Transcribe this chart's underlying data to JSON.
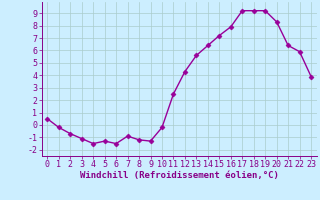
{
  "x": [
    0,
    1,
    2,
    3,
    4,
    5,
    6,
    7,
    8,
    9,
    10,
    11,
    12,
    13,
    14,
    15,
    16,
    17,
    18,
    19,
    20,
    21,
    22,
    23
  ],
  "y": [
    0.5,
    -0.2,
    -0.7,
    -1.1,
    -1.5,
    -1.3,
    -1.5,
    -0.9,
    -1.2,
    -1.3,
    -0.2,
    2.5,
    4.3,
    5.6,
    6.4,
    7.2,
    7.9,
    9.2,
    9.2,
    9.2,
    8.3,
    6.4,
    5.9,
    3.9
  ],
  "line_color": "#990099",
  "marker": "D",
  "markersize": 2.5,
  "linewidth": 1.0,
  "xlabel": "Windchill (Refroidissement éolien,°C)",
  "xlabel_fontsize": 6.5,
  "tick_fontsize": 6,
  "xlim": [
    -0.5,
    23.5
  ],
  "ylim": [
    -2.5,
    9.9
  ],
  "yticks": [
    -2,
    -1,
    0,
    1,
    2,
    3,
    4,
    5,
    6,
    7,
    8,
    9
  ],
  "xticks": [
    0,
    1,
    2,
    3,
    4,
    5,
    6,
    7,
    8,
    9,
    10,
    11,
    12,
    13,
    14,
    15,
    16,
    17,
    18,
    19,
    20,
    21,
    22,
    23
  ],
  "bg_color": "#cceeff",
  "grid_color": "#aacccc",
  "grid_alpha": 1.0,
  "line_color_xlabel": "#880088"
}
